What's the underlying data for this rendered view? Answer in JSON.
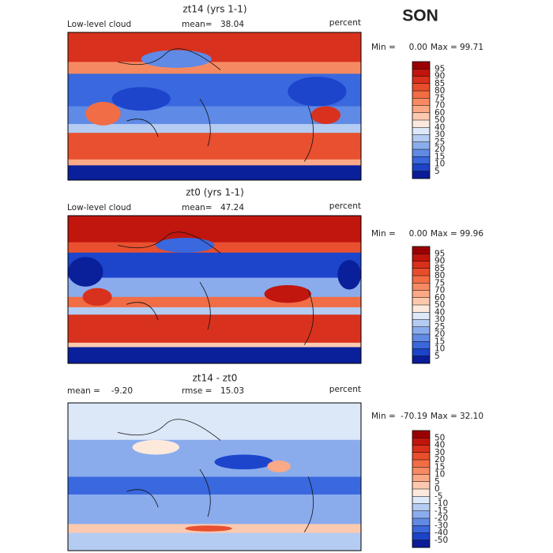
{
  "season": "SON",
  "panels": [
    {
      "title": "zt14 (yrs 1-1)",
      "left_label": "Low-level cloud",
      "stat1_label": "mean=",
      "stat1": "38.04",
      "units": "percent",
      "min_label": "Min =",
      "min": "0.00",
      "max_label": "Max =",
      "max": "99.71",
      "levels": [
        95,
        90,
        85,
        80,
        75,
        70,
        60,
        50,
        40,
        30,
        25,
        20,
        15,
        10,
        5
      ]
    },
    {
      "title": "zt0 (yrs 1-1)",
      "left_label": "Low-level cloud",
      "stat1_label": "mean=",
      "stat1": "47.24",
      "units": "percent",
      "min_label": "Min =",
      "min": "0.00",
      "max_label": "Max =",
      "max": "99.96",
      "levels": [
        95,
        90,
        85,
        80,
        75,
        70,
        60,
        50,
        40,
        30,
        25,
        20,
        15,
        10,
        5
      ]
    },
    {
      "title": "zt14 - zt0",
      "left_label": "mean =",
      "left_value": "-9.20",
      "stat1_label": "rmse =",
      "stat1": "15.03",
      "units": "percent",
      "min_label": "Min =",
      "min": "-70.19",
      "max_label": "Max =",
      "max": "32.10",
      "levels": [
        50,
        40,
        30,
        20,
        15,
        10,
        5,
        0,
        -5,
        -10,
        -15,
        -20,
        -30,
        -40,
        -50
      ]
    }
  ],
  "colorbar_colors": [
    "#9a0000",
    "#c0140c",
    "#d8301c",
    "#e84e2c",
    "#f26c44",
    "#f78a62",
    "#faa986",
    "#fcc9ae",
    "#fde9dc",
    "#dde9f9",
    "#b5cbf2",
    "#8bacec",
    "#618ae4",
    "#3b67dc",
    "#1c43c8",
    "#0a1c98"
  ]
}
